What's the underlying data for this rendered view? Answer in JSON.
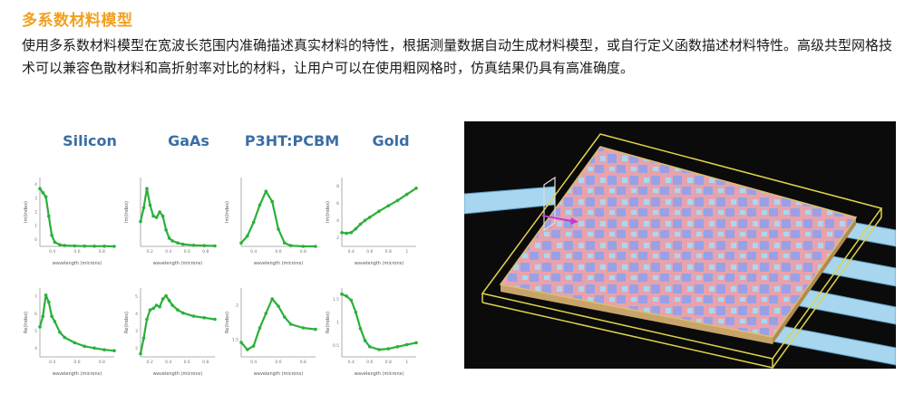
{
  "section": {
    "title": "多系数材料模型",
    "description": "使用多系数材料模型在宽波长范围内准确描述真实材料的特性，根据测量数据自动生成材料模型，或自行定义函数描述材料特性。高级共型网格技术可以兼容色散材料和高折射率对比的材料，让用户可以在使用粗网格时，仿真结果仍具有高准确度。"
  },
  "colors": {
    "title": "#f0a020",
    "material_header": "#3a6ea5",
    "curve": "#2ab03a",
    "device_bg": "#0b0b0b"
  },
  "chart_data": [
    {
      "type": "line",
      "material": "Silicon",
      "ylabel": "Im(Index)",
      "xlabel": "wavelength (microns)",
      "xticks": [
        "0.4",
        "0.6",
        "0.8"
      ],
      "yticks": [
        "0",
        "1",
        "2",
        "3",
        "4"
      ],
      "x": [
        0.25,
        0.28,
        0.31,
        0.34,
        0.37,
        0.4,
        0.45,
        0.5,
        0.6,
        0.7,
        0.8,
        0.9,
        1.0
      ],
      "y": [
        4.2,
        3.9,
        3.6,
        2.2,
        0.8,
        0.3,
        0.12,
        0.06,
        0.03,
        0.02,
        0.01,
        0.01,
        0.0
      ],
      "ylim": [
        0,
        5
      ]
    },
    {
      "type": "line",
      "material": "GaAs",
      "ylabel": "Im(Index)",
      "xlabel": "wavelength (microns)",
      "xticks": [
        "0.2",
        "0.4",
        "0.6",
        "0.8"
      ],
      "yticks": [],
      "x": [
        0.2,
        0.23,
        0.26,
        0.29,
        0.32,
        0.35,
        0.38,
        0.41,
        0.44,
        0.47,
        0.5,
        0.55,
        0.6,
        0.7,
        0.8,
        0.9
      ],
      "y": [
        1.8,
        2.8,
        4.2,
        3.0,
        2.2,
        2.1,
        2.5,
        2.2,
        1.2,
        0.6,
        0.4,
        0.25,
        0.15,
        0.08,
        0.05,
        0.03
      ],
      "ylim": [
        0,
        5
      ]
    },
    {
      "type": "line",
      "material": "P3HT:PCBM",
      "ylabel": "Im(Index)",
      "xlabel": "wavelength (microns)",
      "xticks": [
        "0.4",
        "0.6",
        "0.8"
      ],
      "yticks": [],
      "x": [
        0.3,
        0.35,
        0.4,
        0.45,
        0.5,
        0.55,
        0.6,
        0.65,
        0.7,
        0.8,
        0.9
      ],
      "y": [
        0.05,
        0.15,
        0.35,
        0.6,
        0.8,
        0.65,
        0.25,
        0.05,
        0.01,
        0.0,
        0.0
      ],
      "ylim": [
        0,
        1
      ]
    },
    {
      "type": "line",
      "material": "Gold",
      "ylabel": "Im(Index)",
      "xlabel": "wavelength (microns)",
      "xticks": [
        "0.4",
        "0.6",
        "0.8",
        "1"
      ],
      "yticks": [
        "2",
        "4",
        "6",
        "8"
      ],
      "x": [
        0.3,
        0.35,
        0.4,
        0.45,
        0.5,
        0.55,
        0.6,
        0.7,
        0.8,
        0.9,
        1.0,
        1.1
      ],
      "y": [
        1.8,
        1.7,
        1.8,
        2.3,
        2.9,
        3.4,
        3.8,
        4.6,
        5.3,
        6.0,
        6.8,
        7.6
      ],
      "ylim": [
        0,
        9
      ]
    },
    {
      "type": "line",
      "material": "Silicon",
      "ylabel": "Re(Index)",
      "xlabel": "wavelength (microns)",
      "xticks": [
        "0.4",
        "0.6",
        "0.8"
      ],
      "yticks": [
        "4",
        "5",
        "6",
        "7"
      ],
      "x": [
        0.25,
        0.28,
        0.31,
        0.34,
        0.37,
        0.4,
        0.45,
        0.5,
        0.6,
        0.7,
        0.8,
        0.9,
        1.0
      ],
      "y": [
        5.0,
        5.6,
        6.8,
        6.4,
        5.6,
        5.3,
        4.7,
        4.4,
        4.1,
        3.9,
        3.8,
        3.7,
        3.65
      ],
      "ylim": [
        3.3,
        7.2
      ]
    },
    {
      "type": "line",
      "material": "GaAs",
      "ylabel": "Re(Index)",
      "xlabel": "wavelength (microns)",
      "xticks": [
        "0.2",
        "0.4",
        "0.6",
        "0.8"
      ],
      "yticks": [
        "2",
        "3",
        "4",
        "5"
      ],
      "x": [
        0.2,
        0.23,
        0.26,
        0.29,
        0.32,
        0.35,
        0.38,
        0.41,
        0.44,
        0.47,
        0.5,
        0.55,
        0.6,
        0.7,
        0.8,
        0.9
      ],
      "y": [
        1.4,
        2.4,
        3.6,
        4.2,
        4.3,
        4.5,
        4.4,
        4.9,
        5.1,
        4.8,
        4.5,
        4.2,
        4.0,
        3.8,
        3.7,
        3.6
      ],
      "ylim": [
        1.2,
        5.6
      ]
    },
    {
      "type": "line",
      "material": "P3HT:PCBM",
      "ylabel": "Re(Index)",
      "xlabel": "wavelength (microns)",
      "xticks": [
        "0.4",
        "0.6",
        "0.8"
      ],
      "yticks": [
        "1.5",
        "2"
      ],
      "x": [
        0.3,
        0.35,
        0.4,
        0.45,
        0.5,
        0.55,
        0.6,
        0.65,
        0.7,
        0.8,
        0.9
      ],
      "y": [
        1.6,
        1.5,
        1.55,
        1.8,
        2.0,
        2.2,
        2.1,
        1.95,
        1.85,
        1.8,
        1.78
      ],
      "ylim": [
        1.4,
        2.35
      ]
    },
    {
      "type": "line",
      "material": "Gold",
      "ylabel": "Re(Index)",
      "xlabel": "wavelength (microns)",
      "xticks": [
        "0.4",
        "0.6",
        "0.8",
        "1"
      ],
      "yticks": [
        "0.5",
        "1",
        "1.5"
      ],
      "x": [
        0.3,
        0.35,
        0.4,
        0.45,
        0.5,
        0.55,
        0.6,
        0.7,
        0.8,
        0.9,
        1.0,
        1.1
      ],
      "y": [
        1.55,
        1.5,
        1.4,
        1.1,
        0.7,
        0.4,
        0.25,
        0.18,
        0.2,
        0.25,
        0.3,
        0.35
      ],
      "ylim": [
        0,
        1.7
      ]
    }
  ]
}
